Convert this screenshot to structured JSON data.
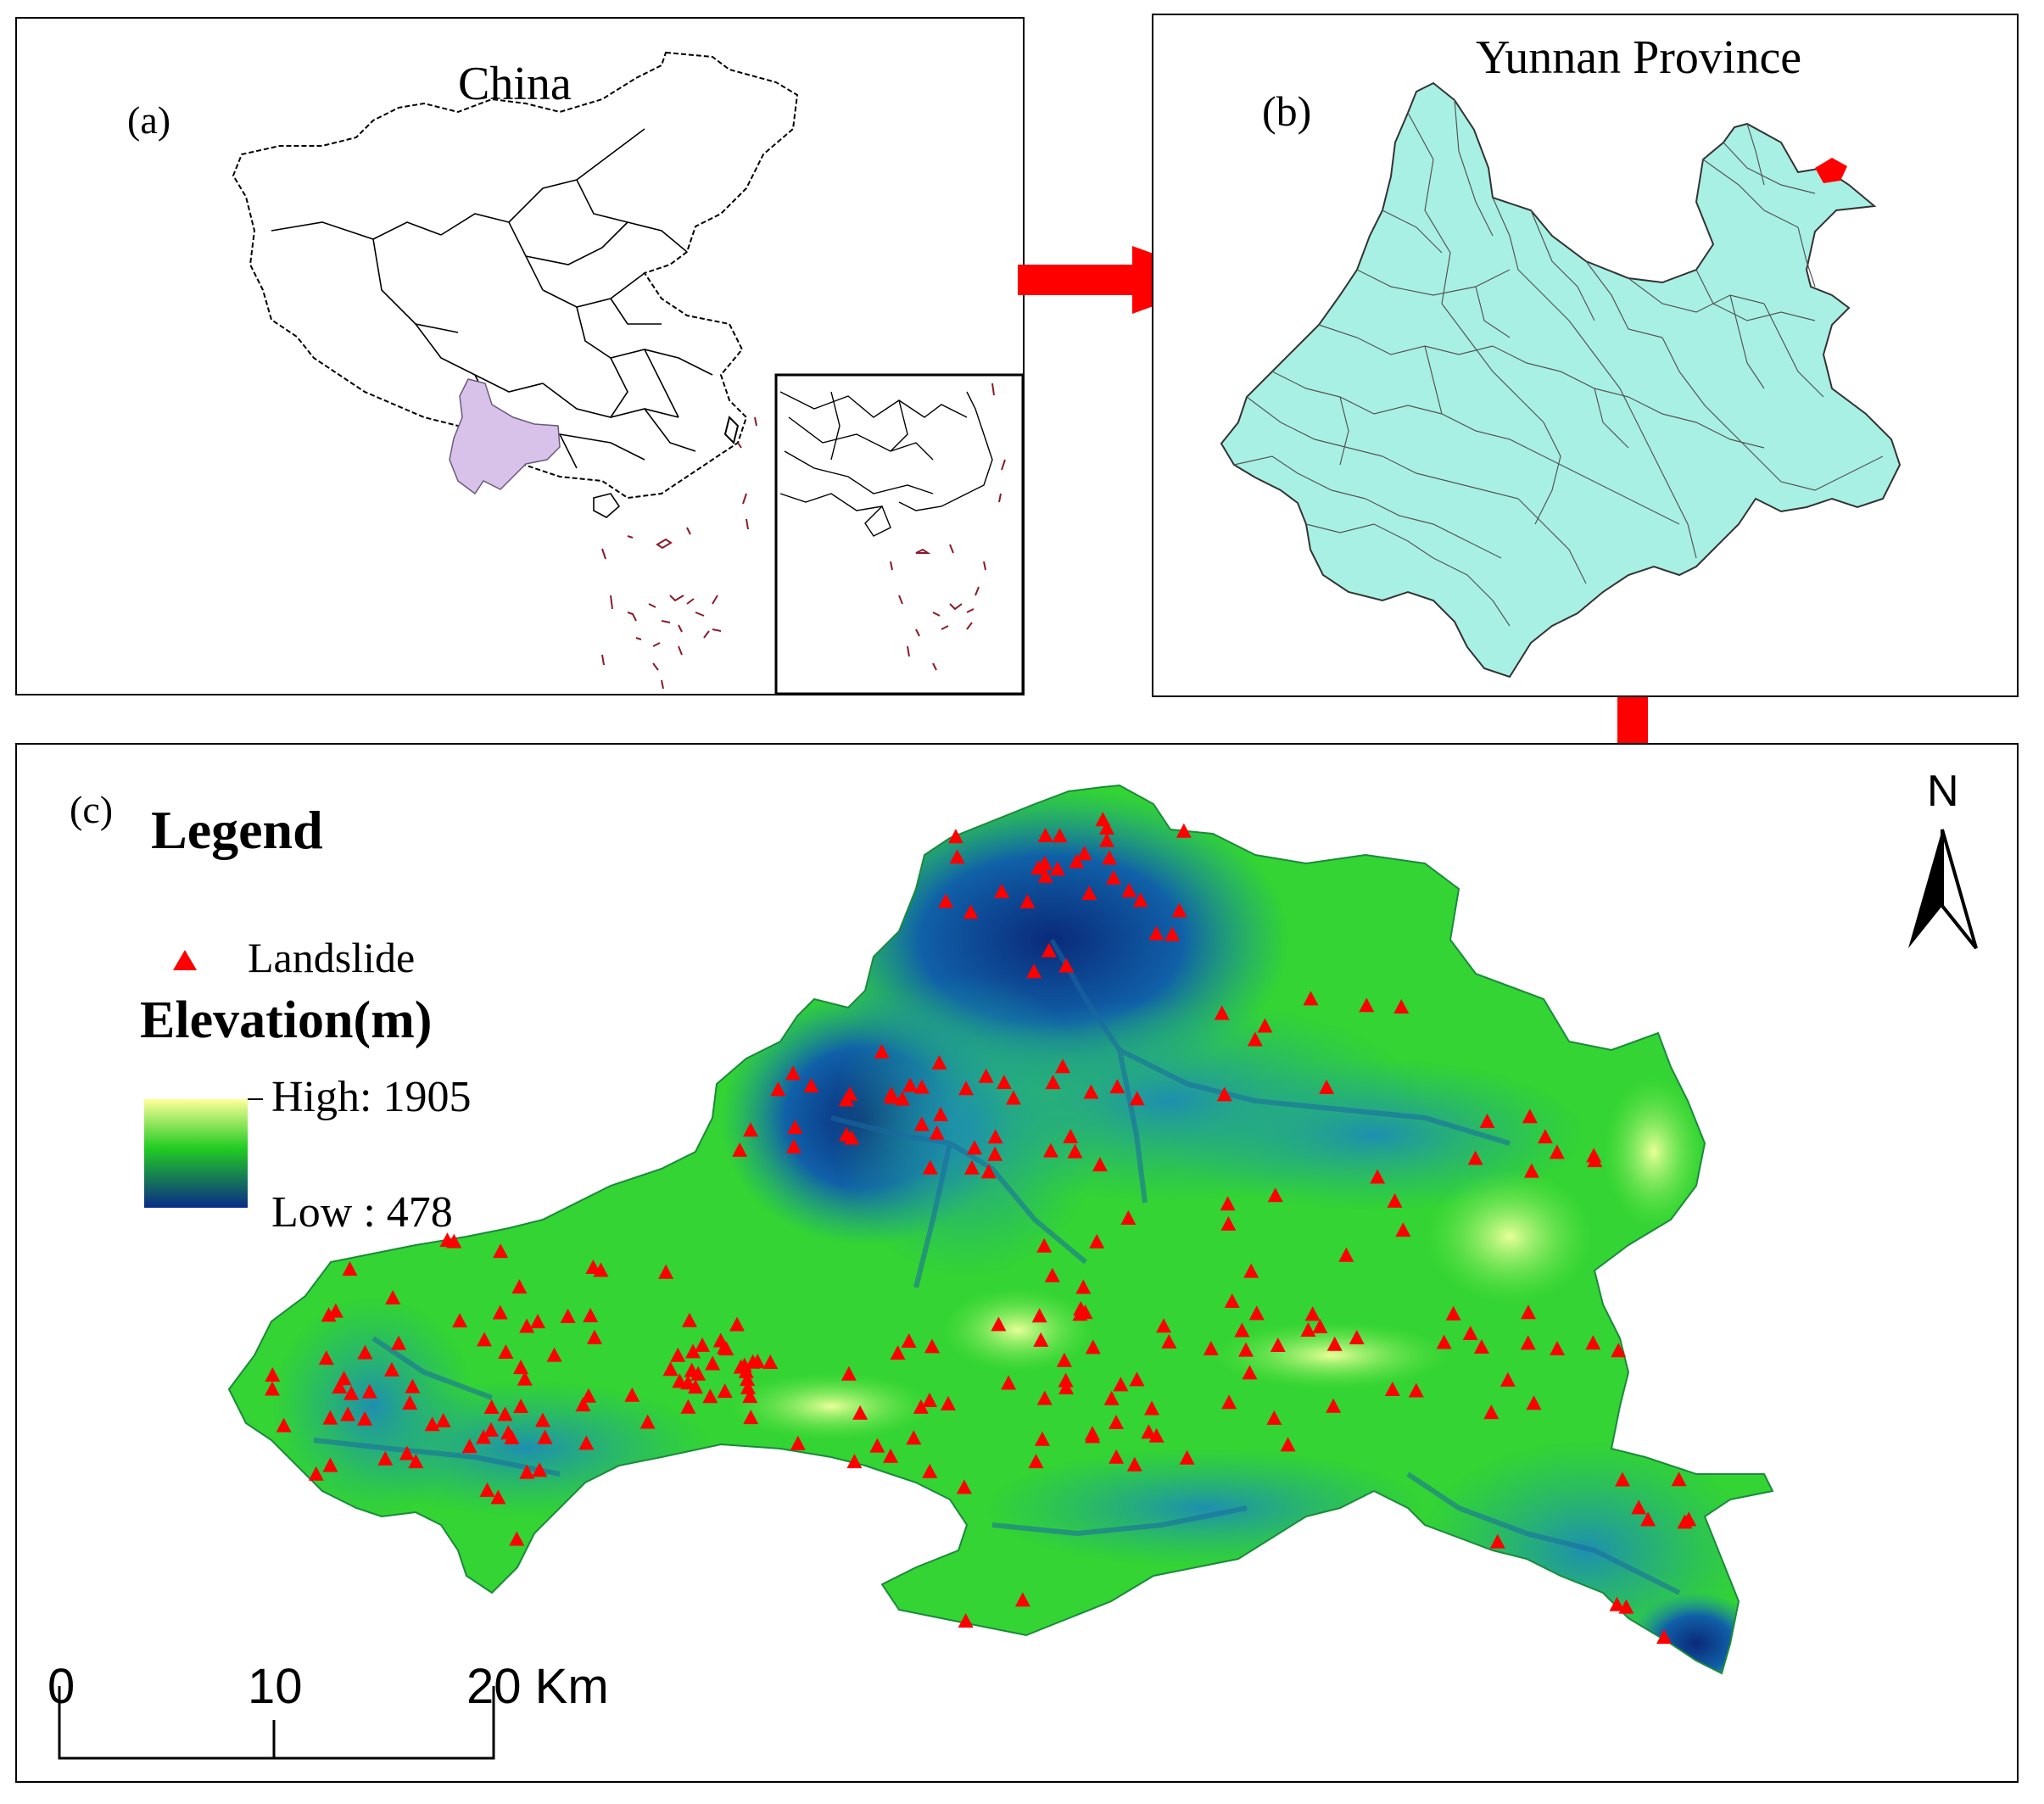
{
  "panel_a": {
    "label": "(a)",
    "title": "China"
  },
  "panel_b": {
    "label": "(b)",
    "title": "Yunnan Province"
  },
  "panel_c": {
    "label": "(c)",
    "legend_title": "Legend",
    "legend_landslide": "Landslide",
    "elevation_title": "Elevation(m)",
    "elevation_high": "High: 1905",
    "elevation_low": "Low : 478",
    "north": "N",
    "scale_0": "0",
    "scale_10": "10",
    "scale_20": "20 Km"
  },
  "colors": {
    "china_fill": "#ffffff",
    "yunnan_highlight": "#d8c2ea",
    "yunnan_fill": "#a8f0e4",
    "arrow": "#ff0000",
    "landslide": "#ff0000",
    "elevation_high": "#ffff99",
    "elevation_mid": "#22cc22",
    "elevation_low": "#0a2a88",
    "island_outline": "#8b1a2a"
  }
}
